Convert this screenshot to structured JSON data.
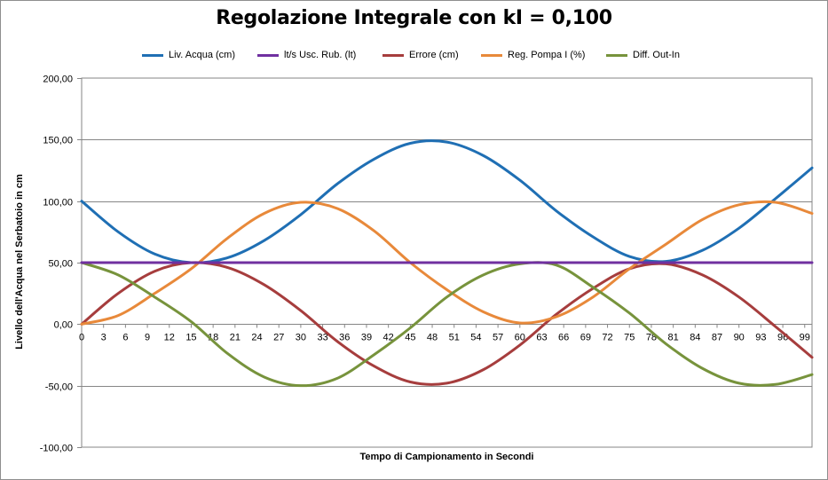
{
  "chart_data": {
    "type": "line",
    "title": "Regolazione Integrale con kI =  0,100",
    "xlabel": "Tempo di Campionamento in Secondi",
    "ylabel": "Livello dell'Acqua  nel Serbatoio  in cm",
    "ylim": [
      -100,
      200
    ],
    "xlim": [
      0,
      100
    ],
    "y_ticks": [
      "200,00",
      "150,00",
      "100,00",
      "50,00",
      "0,00",
      "-50,00",
      "-100,00"
    ],
    "x_ticks": [
      "0",
      "3",
      "6",
      "9",
      "12",
      "15",
      "18",
      "21",
      "24",
      "27",
      "30",
      "33",
      "36",
      "39",
      "42",
      "45",
      "48",
      "51",
      "54",
      "57",
      "60",
      "63",
      "66",
      "69",
      "72",
      "75",
      "78",
      "81",
      "84",
      "87",
      "90",
      "93",
      "96",
      "99"
    ],
    "grid": true,
    "legend_position": "top",
    "series": [
      {
        "name": "Liv. Acqua (cm)",
        "color": "#1f6fb4",
        "x": [
          0,
          5,
          10,
          15,
          20,
          25,
          30,
          35,
          40,
          45,
          50,
          55,
          60,
          65,
          70,
          75,
          80,
          85,
          90,
          95,
          100
        ],
        "values": [
          100,
          75,
          57,
          50,
          54,
          68,
          89,
          114,
          134,
          147,
          148,
          137,
          117,
          92,
          71,
          55,
          51,
          60,
          78,
          102,
          127
        ]
      },
      {
        "name": "lt/s Usc. Rub. (lt)",
        "color": "#7030a0",
        "x": [
          0,
          100
        ],
        "values": [
          50,
          50
        ]
      },
      {
        "name": "Errore (cm)",
        "color": "#a63d3d",
        "x": [
          0,
          5,
          10,
          15,
          20,
          25,
          30,
          35,
          40,
          45,
          50,
          55,
          60,
          65,
          70,
          75,
          80,
          85,
          90,
          95,
          100
        ],
        "values": [
          0,
          25,
          43,
          50,
          46,
          32,
          11,
          -14,
          -34,
          -47,
          -48,
          -37,
          -17,
          8,
          29,
          45,
          49,
          40,
          22,
          -2,
          -27
        ]
      },
      {
        "name": "Reg. Pompa I (%)",
        "color": "#e8893a",
        "x": [
          0,
          5,
          10,
          15,
          20,
          25,
          30,
          35,
          40,
          45,
          50,
          55,
          60,
          65,
          70,
          75,
          80,
          85,
          90,
          95,
          100
        ],
        "values": [
          0,
          7,
          25,
          45,
          70,
          90,
          99,
          94,
          76,
          50,
          28,
          10,
          1,
          6,
          22,
          45,
          65,
          85,
          97,
          99,
          90
        ]
      },
      {
        "name": "Diff.  Out-In",
        "color": "#77933c",
        "x": [
          0,
          5,
          10,
          15,
          20,
          25,
          30,
          35,
          40,
          45,
          50,
          55,
          60,
          65,
          70,
          75,
          80,
          85,
          90,
          95,
          100
        ],
        "values": [
          50,
          40,
          22,
          2,
          -24,
          -43,
          -50,
          -44,
          -25,
          -3,
          22,
          40,
          49,
          48,
          30,
          9,
          -16,
          -36,
          -48,
          -49,
          -41
        ]
      }
    ]
  }
}
